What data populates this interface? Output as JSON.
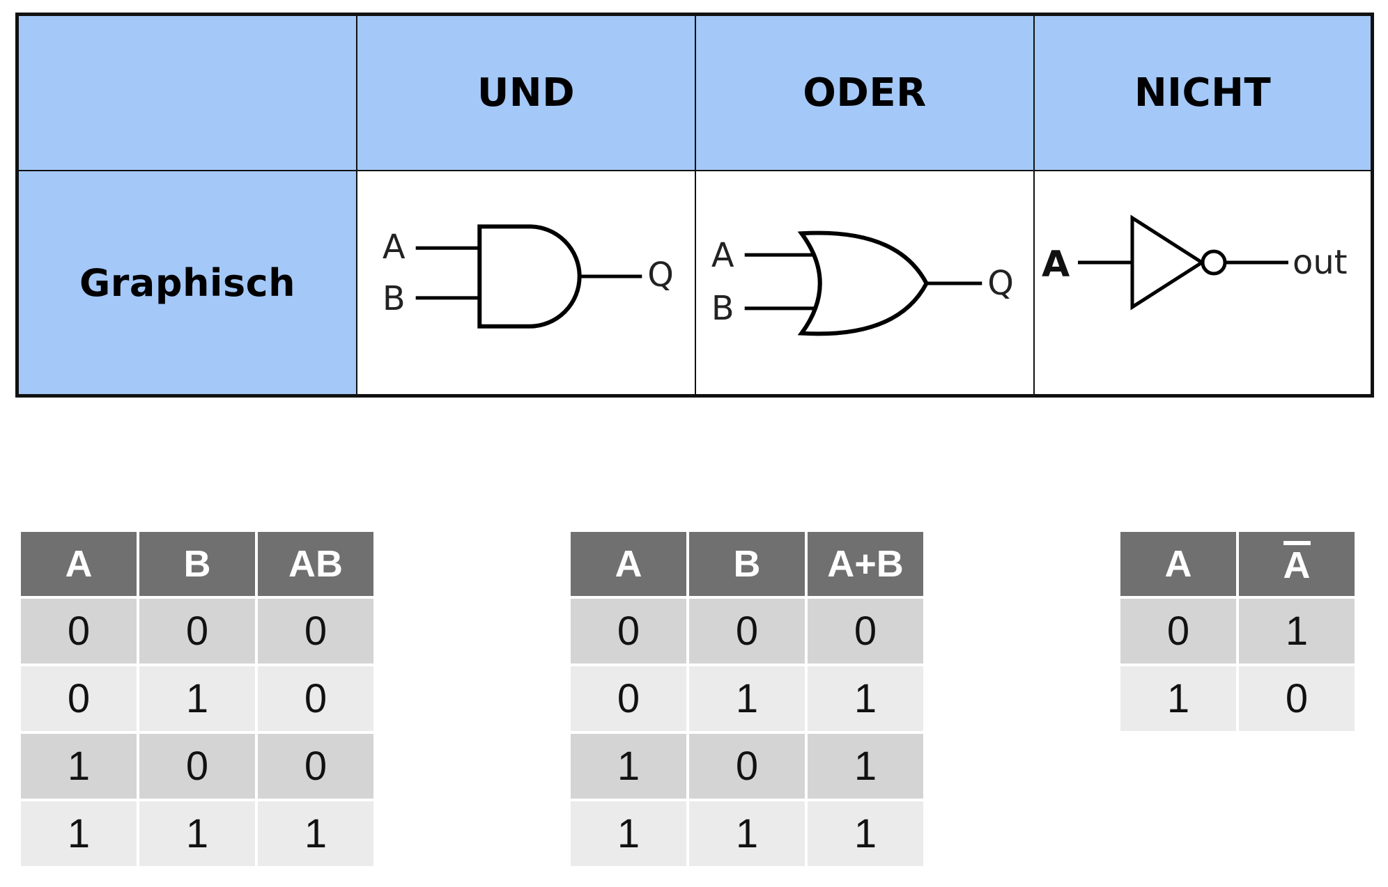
{
  "overview": {
    "headers": [
      "",
      "UND",
      "ODER",
      "NICHT"
    ],
    "row_label": "Graphisch",
    "and_gate": {
      "input_a": "A",
      "input_b": "B",
      "output": "Q"
    },
    "or_gate": {
      "input_a": "A",
      "input_b": "B",
      "output": "Q"
    },
    "not_gate": {
      "input": "A",
      "output": "out"
    }
  },
  "truth_tables": [
    {
      "headers": [
        "A",
        "B",
        "AB"
      ],
      "rows": [
        [
          "0",
          "0",
          "0"
        ],
        [
          "0",
          "1",
          "0"
        ],
        [
          "1",
          "0",
          "0"
        ],
        [
          "1",
          "1",
          "1"
        ]
      ]
    },
    {
      "headers": [
        "A",
        "B",
        "A+B"
      ],
      "rows": [
        [
          "0",
          "0",
          "0"
        ],
        [
          "0",
          "1",
          "1"
        ],
        [
          "1",
          "0",
          "1"
        ],
        [
          "1",
          "1",
          "1"
        ]
      ]
    },
    {
      "headers": [
        "A",
        "A"
      ],
      "negated_header": 1,
      "rows": [
        [
          "0",
          "1"
        ],
        [
          "1",
          "0"
        ]
      ]
    }
  ],
  "colors": {
    "header_blue": "#a4c8f7",
    "table_header_gray": "#707070",
    "row_dark": "#d4d4d4",
    "row_light": "#ebebeb"
  }
}
